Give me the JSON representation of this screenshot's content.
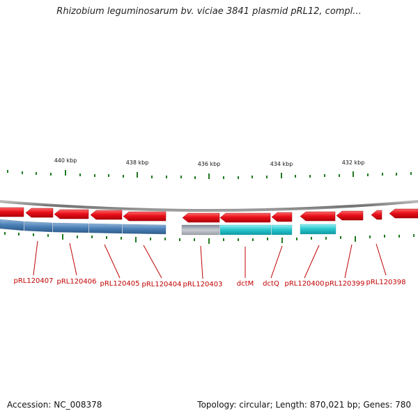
{
  "title": "Rhizobium leguminosarum bv. viciae 3841 plasmid pRL12, compl...",
  "footer": {
    "accession": "Accession: NC_008378",
    "summary": "Topology: circular; Length: 870,021 bp; Genes: 780"
  },
  "colors": {
    "forward_gene": "#e8101a",
    "reverse_gene_blue": "#4a7fb5",
    "reverse_gene_cyan": "#27c4cc",
    "reverse_gene_gray": "#a8aeb6",
    "backbone": "#8a8a8a",
    "tick": "#1e7a1e",
    "label": "#c00000"
  },
  "ruler": {
    "kbp_labels": [
      "440 kbp",
      "438 kbp",
      "436 kbp",
      "434 kbp",
      "432 kbp"
    ]
  },
  "genes": [
    {
      "name": "pRL120407"
    },
    {
      "name": "pRL120406"
    },
    {
      "name": "pRL120405"
    },
    {
      "name": "pRL120404"
    },
    {
      "name": "pRL120403"
    },
    {
      "name": "dctM"
    },
    {
      "name": "dctQ"
    },
    {
      "name": "pRL120400"
    },
    {
      "name": "pRL120399"
    },
    {
      "name": "pRL120398"
    }
  ]
}
